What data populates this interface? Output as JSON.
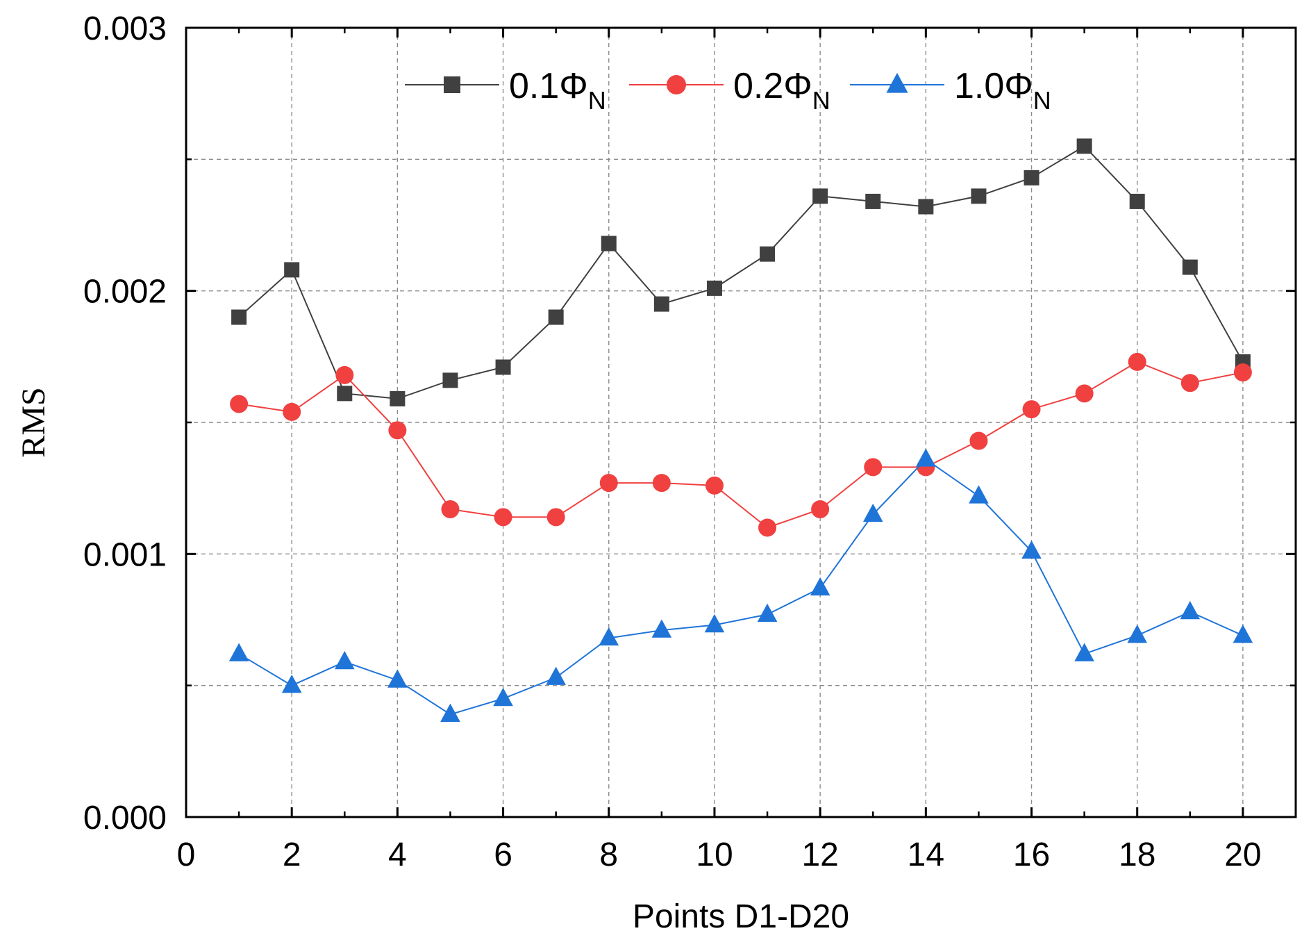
{
  "chart_data": {
    "type": "line",
    "title": "",
    "xlabel": "Points D1-D20",
    "ylabel": "RMS",
    "xlim": [
      0,
      21
    ],
    "ylim": [
      0,
      0.003
    ],
    "grid": true,
    "legend_position": "top",
    "x_ticks": [
      0,
      2,
      4,
      6,
      8,
      10,
      12,
      14,
      16,
      18,
      20
    ],
    "x_tick_labels": [
      "0",
      "2",
      "4",
      "6",
      "8",
      "10",
      "12",
      "14",
      "16",
      "18",
      "20"
    ],
    "y_ticks": [
      0,
      0.001,
      0.002,
      0.003
    ],
    "y_tick_labels": [
      "0.000",
      "0.001",
      "0.002",
      "0.003"
    ],
    "y_minor_ticks": [
      0.0005,
      0.0015,
      0.0025
    ],
    "x": [
      1,
      2,
      3,
      4,
      5,
      6,
      7,
      8,
      9,
      10,
      11,
      12,
      13,
      14,
      15,
      16,
      17,
      18,
      19,
      20
    ],
    "series": [
      {
        "name": "0.1ΦN",
        "label_main": "0.1Φ",
        "label_sub": "N",
        "color": "#404040",
        "marker": "square",
        "values": [
          0.0019,
          0.00208,
          0.00161,
          0.00159,
          0.00166,
          0.00171,
          0.0019,
          0.00218,
          0.00195,
          0.00201,
          0.00214,
          0.00236,
          0.00234,
          0.00232,
          0.00236,
          0.00243,
          0.00255,
          0.00234,
          0.00209,
          0.00173
        ]
      },
      {
        "name": "0.2ΦN",
        "label_main": "0.2Φ",
        "label_sub": "N",
        "color": "#f04040",
        "marker": "circle",
        "values": [
          0.00157,
          0.00154,
          0.00168,
          0.00147,
          0.00117,
          0.00114,
          0.00114,
          0.00127,
          0.00127,
          0.00126,
          0.0011,
          0.00117,
          0.00133,
          0.00133,
          0.00143,
          0.00155,
          0.00161,
          0.00173,
          0.00165,
          0.00169
        ]
      },
      {
        "name": "1.0ΦN",
        "label_main": "1.0Φ",
        "label_sub": "N",
        "color": "#1f74d8",
        "marker": "triangle",
        "values": [
          0.00062,
          0.0005,
          0.00059,
          0.00052,
          0.00039,
          0.00045,
          0.00053,
          0.00068,
          0.00071,
          0.00073,
          0.00077,
          0.00087,
          0.00115,
          0.00136,
          0.00122,
          0.00101,
          0.00062,
          0.00069,
          0.00078,
          0.00069
        ]
      }
    ]
  }
}
